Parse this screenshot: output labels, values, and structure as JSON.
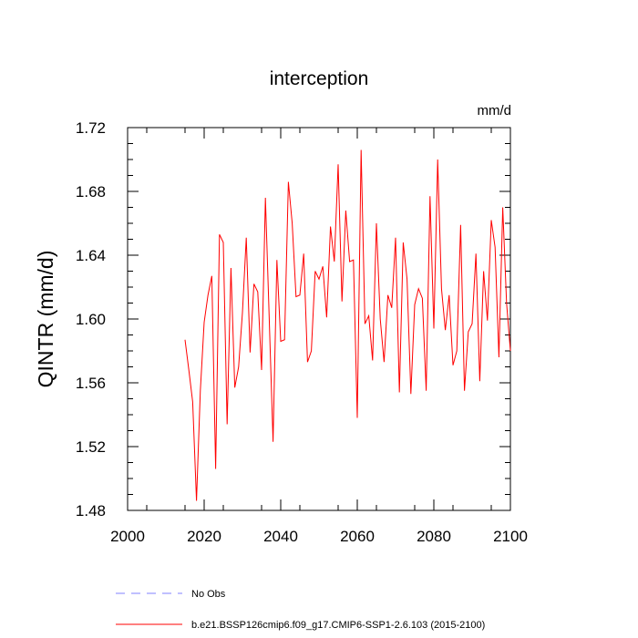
{
  "chart_data": {
    "type": "line",
    "title": "interception",
    "units": "mm/d",
    "ylabel": "QINTR  (mm/d)",
    "xlabel": "",
    "xlim": [
      2000,
      2100
    ],
    "ylim": [
      1.48,
      1.72
    ],
    "xticks": [
      "2000",
      "2020",
      "2040",
      "2060",
      "2080",
      "2100"
    ],
    "yticks": [
      "1.48",
      "1.52",
      "1.56",
      "1.60",
      "1.64",
      "1.68",
      "1.72"
    ],
    "legend": [
      {
        "name": "No Obs",
        "color": "#8080ff",
        "style": "dashed"
      },
      {
        "name": "b.e21.BSSP126cmip6.f09_g17.CMIP6-SSP1-2.6.103 (2015-2100)",
        "color": "#ff0000",
        "style": "solid"
      }
    ],
    "series": [
      {
        "name": "b.e21.BSSP126cmip6.f09_g17.CMIP6-SSP1-2.6.103 (2015-2100)",
        "color": "#ff0000",
        "x": [
          2015,
          2016,
          2017,
          2018,
          2019,
          2020,
          2021,
          2022,
          2023,
          2024,
          2025,
          2026,
          2027,
          2028,
          2029,
          2030,
          2031,
          2032,
          2033,
          2034,
          2035,
          2036,
          2037,
          2038,
          2039,
          2040,
          2041,
          2042,
          2043,
          2044,
          2045,
          2046,
          2047,
          2048,
          2049,
          2050,
          2051,
          2052,
          2053,
          2054,
          2055,
          2056,
          2057,
          2058,
          2059,
          2060,
          2061,
          2062,
          2063,
          2064,
          2065,
          2066,
          2067,
          2068,
          2069,
          2070,
          2071,
          2072,
          2073,
          2074,
          2075,
          2076,
          2077,
          2078,
          2079,
          2080,
          2081,
          2082,
          2083,
          2084,
          2085,
          2086,
          2087,
          2088,
          2089,
          2090,
          2091,
          2092,
          2093,
          2094,
          2095,
          2096,
          2097,
          2098,
          2099,
          2100
        ],
        "values": [
          1.587,
          1.568,
          1.548,
          1.486,
          1.555,
          1.598,
          1.615,
          1.627,
          1.506,
          1.653,
          1.648,
          1.534,
          1.632,
          1.557,
          1.57,
          1.604,
          1.651,
          1.579,
          1.622,
          1.617,
          1.568,
          1.676,
          1.6,
          1.523,
          1.637,
          1.586,
          1.587,
          1.686,
          1.66,
          1.614,
          1.615,
          1.641,
          1.573,
          1.58,
          1.63,
          1.625,
          1.633,
          1.601,
          1.658,
          1.636,
          1.697,
          1.611,
          1.668,
          1.636,
          1.637,
          1.538,
          1.706,
          1.597,
          1.602,
          1.574,
          1.66,
          1.6,
          1.573,
          1.615,
          1.607,
          1.651,
          1.554,
          1.648,
          1.625,
          1.553,
          1.609,
          1.619,
          1.613,
          1.555,
          1.677,
          1.594,
          1.7,
          1.619,
          1.593,
          1.615,
          1.571,
          1.58,
          1.659,
          1.555,
          1.592,
          1.597,
          1.641,
          1.561,
          1.63,
          1.599,
          1.662,
          1.645,
          1.576,
          1.67,
          1.61,
          1.58
        ]
      }
    ]
  }
}
